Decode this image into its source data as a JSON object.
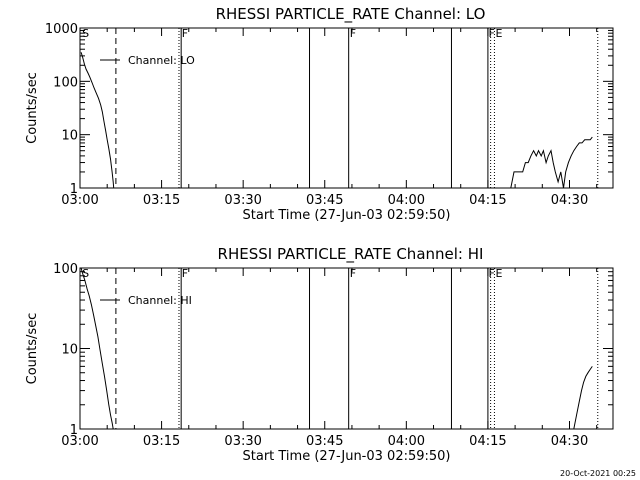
{
  "stamp": "20-Oct-2021 00:25",
  "chart_data": [
    {
      "type": "line",
      "title": "RHESSI PARTICLE_RATE Channel: LO",
      "xlabel": "Start Time (27-Jun-03 02:59:50)",
      "ylabel": "Counts/sec",
      "y_scale": "log",
      "ylim": [
        1,
        1000
      ],
      "xlim_minutes": [
        0,
        98
      ],
      "x_ticks": [
        "03:00",
        "03:15",
        "03:30",
        "03:45",
        "04:00",
        "04:15",
        "04:30"
      ],
      "y_ticks": [
        "1",
        "10",
        "100",
        "1000"
      ],
      "y_tick_values": [
        1,
        10,
        100,
        1000
      ],
      "legend": {
        "label": "Channel: LO",
        "position": "top-left"
      },
      "markers": {
        "S": "S",
        "F": "F",
        "E": "E"
      },
      "series_segments": [
        {
          "t": [
            0.2,
            0.5,
            0.8,
            1.1,
            1.5,
            1.8,
            2.2,
            2.6,
            3.0,
            3.4,
            3.8,
            4.1,
            4.4,
            4.7,
            5.0,
            5.3,
            5.6,
            5.9,
            6.1,
            6.2
          ],
          "y": [
            350,
            280,
            210,
            170,
            140,
            120,
            95,
            75,
            60,
            48,
            36,
            27,
            18,
            12,
            8,
            5.5,
            3.5,
            2,
            1.3,
            1
          ]
        },
        {
          "t": [
            79.2,
            79.8,
            80.3,
            80.8,
            81.4,
            81.9,
            82.4,
            82.9,
            83.4,
            83.9,
            84.3,
            84.8,
            85.2,
            85.7,
            86.1,
            86.6,
            87.0,
            87.4,
            87.9,
            88.4,
            88.9,
            89.3,
            89.8,
            90.3,
            90.8,
            91.3,
            91.8,
            92.3,
            92.8,
            93.3,
            93.8,
            94.2
          ],
          "y": [
            1,
            2,
            2,
            2,
            2,
            3,
            3,
            4,
            5,
            4,
            5,
            4,
            5,
            3,
            4,
            5,
            3,
            2,
            1.3,
            2,
            1,
            2,
            3,
            4,
            5,
            6,
            7,
            7,
            8,
            8,
            8,
            9
          ]
        }
      ],
      "event_lines": [
        {
          "t": 6.6,
          "style": "dashed"
        },
        {
          "t": 18.2,
          "style": "dotted"
        },
        {
          "t": 18.6,
          "style": "solid"
        },
        {
          "t": 42.2,
          "style": "solid"
        },
        {
          "t": 49.4,
          "style": "solid"
        },
        {
          "t": 68.3,
          "style": "solid"
        },
        {
          "t": 75.0,
          "style": "solid"
        },
        {
          "t": 75.5,
          "style": "dotted"
        },
        {
          "t": 76.2,
          "style": "dotted"
        },
        {
          "t": 95.2,
          "style": "dotted"
        }
      ]
    },
    {
      "type": "line",
      "title": "RHESSI PARTICLE_RATE Channel: HI",
      "xlabel": "Start Time (27-Jun-03 02:59:50)",
      "ylabel": "Counts/sec",
      "y_scale": "log",
      "ylim": [
        1,
        100
      ],
      "xlim_minutes": [
        0,
        98
      ],
      "x_ticks": [
        "03:00",
        "03:15",
        "03:30",
        "03:45",
        "04:00",
        "04:15",
        "04:30"
      ],
      "y_ticks": [
        "1",
        "10",
        "100"
      ],
      "y_tick_values": [
        1,
        10,
        100
      ],
      "legend": {
        "label": "Channel: HI",
        "position": "top-left"
      },
      "markers": {
        "S": "S",
        "F": "F",
        "E": "E"
      },
      "series_segments": [
        {
          "t": [
            0.2,
            0.5,
            0.9,
            1.3,
            1.7,
            2.1,
            2.5,
            2.9,
            3.3,
            3.7,
            4.1,
            4.5,
            4.9,
            5.3,
            5.6,
            5.9,
            6.1
          ],
          "y": [
            100,
            85,
            70,
            55,
            45,
            35,
            26,
            19,
            14,
            9.5,
            6.5,
            4.5,
            3,
            2,
            1.5,
            1.2,
            1
          ]
        },
        {
          "t": [
            90.8,
            91.3,
            91.8,
            92.2,
            92.6,
            93.0,
            93.4,
            93.8,
            94.2
          ],
          "y": [
            1,
            1.5,
            2.2,
            3,
            3.8,
            4.5,
            5,
            5.5,
            6
          ]
        }
      ],
      "event_lines": [
        {
          "t": 6.6,
          "style": "dashed"
        },
        {
          "t": 18.2,
          "style": "dotted"
        },
        {
          "t": 18.6,
          "style": "solid"
        },
        {
          "t": 42.2,
          "style": "solid"
        },
        {
          "t": 49.4,
          "style": "solid"
        },
        {
          "t": 68.3,
          "style": "solid"
        },
        {
          "t": 75.0,
          "style": "solid"
        },
        {
          "t": 75.5,
          "style": "dotted"
        },
        {
          "t": 76.2,
          "style": "dotted"
        },
        {
          "t": 95.2,
          "style": "dotted"
        }
      ]
    }
  ]
}
